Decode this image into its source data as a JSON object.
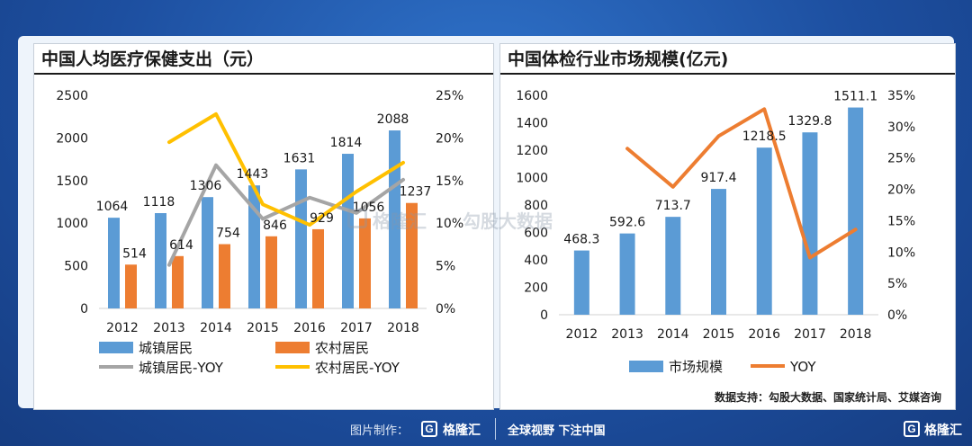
{
  "colors": {
    "bar_blue": "#5b9bd5",
    "bar_orange": "#ed7d31",
    "line_gray": "#a5a5a5",
    "line_yellow": "#ffc000",
    "line_orange": "#ed7d31"
  },
  "chart_data": [
    {
      "type": "bar",
      "title": "中国人均医疗保健支出（元）",
      "categories": [
        "2012",
        "2013",
        "2014",
        "2015",
        "2016",
        "2017",
        "2018"
      ],
      "ylim": [
        0,
        2500
      ],
      "y_ticks": [
        "0",
        "500",
        "1000",
        "1500",
        "2000",
        "2500"
      ],
      "y2lim": [
        0,
        25
      ],
      "y2_ticks": [
        "0%",
        "5%",
        "10%",
        "15%",
        "20%",
        "25%"
      ],
      "series": [
        {
          "name": "城镇居民",
          "kind": "bar",
          "axis": "left",
          "values": [
            1064,
            1118,
            1306,
            1443,
            1631,
            1814,
            2088
          ],
          "labels": [
            "1064",
            "1118",
            "1306",
            "1443",
            "1631",
            "1814",
            "2088"
          ]
        },
        {
          "name": "农村居民",
          "kind": "bar",
          "axis": "left",
          "values": [
            514,
            614,
            754,
            846,
            929,
            1056,
            1237
          ],
          "labels": [
            "514",
            "614",
            "754",
            "846",
            "929",
            "1056",
            "1237"
          ]
        },
        {
          "name": "城镇居民-YOY",
          "kind": "line",
          "axis": "right",
          "values": [
            null,
            5.1,
            16.8,
            10.5,
            13.0,
            11.2,
            15.1
          ]
        },
        {
          "name": "农村居民-YOY",
          "kind": "line",
          "axis": "right",
          "values": [
            null,
            19.5,
            22.8,
            12.2,
            9.8,
            13.7,
            17.1
          ]
        }
      ],
      "legend_position": "bottom"
    },
    {
      "type": "bar",
      "title": "中国体检行业市场规模(亿元)",
      "categories": [
        "2012",
        "2013",
        "2014",
        "2015",
        "2016",
        "2017",
        "2018"
      ],
      "ylim": [
        0,
        1600
      ],
      "y_ticks": [
        "0",
        "200",
        "400",
        "600",
        "800",
        "1000",
        "1200",
        "1400",
        "1600"
      ],
      "y2lim": [
        0,
        35
      ],
      "y2_ticks": [
        "0%",
        "5%",
        "10%",
        "15%",
        "20%",
        "25%",
        "30%",
        "35%"
      ],
      "series": [
        {
          "name": "市场规模",
          "kind": "bar",
          "axis": "left",
          "values": [
            468.3,
            592.6,
            713.7,
            917.4,
            1218.5,
            1329.8,
            1511.1
          ],
          "labels": [
            "468.3",
            "592.6",
            "713.7",
            "917.4",
            "1218.5",
            "1329.8",
            "1511.1"
          ]
        },
        {
          "name": "YOY",
          "kind": "line",
          "axis": "right",
          "values": [
            null,
            26.5,
            20.4,
            28.5,
            32.8,
            9.1,
            13.6
          ]
        }
      ],
      "legend_position": "bottom"
    }
  ],
  "source_text": "数据支持：勾股大数据、国家统计局、艾媒咨询",
  "footer": {
    "credit": "图片制作：",
    "logo": "格隆汇",
    "slogan": "全球视野 下注中国",
    "corner_logo": "格隆汇"
  },
  "watermark": {
    "brand": "格隆汇",
    "partner": "勾股大数据"
  }
}
